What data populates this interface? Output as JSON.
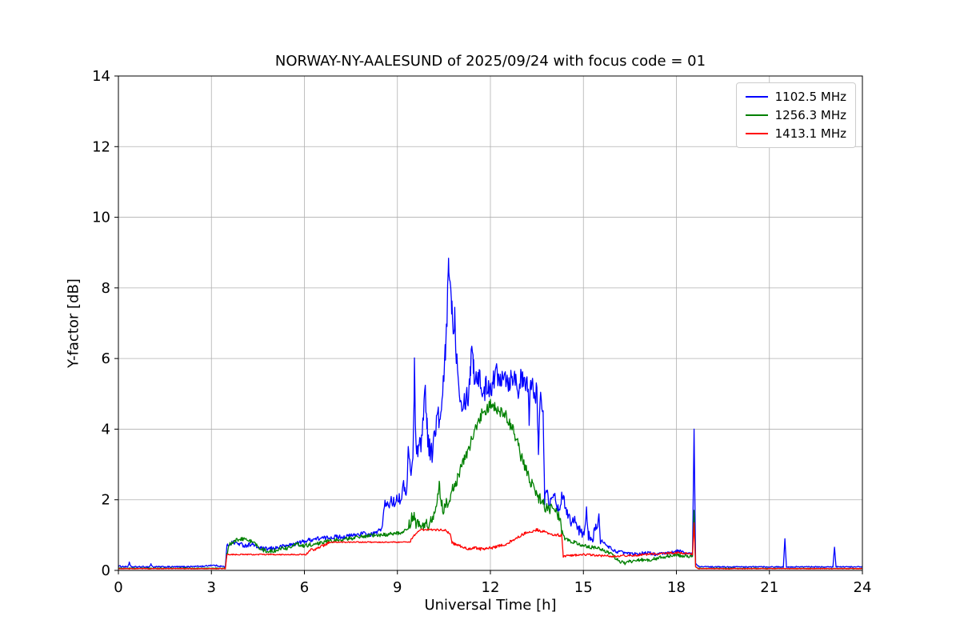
{
  "chart_data": {
    "type": "line",
    "title": "NORWAY-NY-AALESUND of 2025/09/24 with focus code = 01",
    "xlabel": "Universal Time [h]",
    "ylabel": "Y-factor [dB]",
    "xlim": [
      0,
      24
    ],
    "ylim": [
      0,
      14
    ],
    "xticks": [
      0,
      3,
      6,
      9,
      12,
      15,
      18,
      21,
      24
    ],
    "yticks": [
      0,
      2,
      4,
      6,
      8,
      10,
      12,
      14
    ],
    "grid": true,
    "legend_position": "upper right",
    "series": [
      {
        "name": "1102.5 MHz",
        "color": "#0000ff",
        "points": [
          [
            0,
            0.12
          ],
          [
            0.3,
            0.1
          ],
          [
            0.35,
            0.22
          ],
          [
            0.4,
            0.1
          ],
          [
            1.0,
            0.1
          ],
          [
            1.05,
            0.18
          ],
          [
            1.1,
            0.1
          ],
          [
            2.0,
            0.1
          ],
          [
            2.8,
            0.12
          ],
          [
            3.0,
            0.15
          ],
          [
            3.3,
            0.12
          ],
          [
            3.45,
            0.1
          ],
          [
            3.5,
            0.7
          ],
          [
            3.7,
            0.8
          ],
          [
            3.9,
            0.75
          ],
          [
            4.1,
            0.7
          ],
          [
            4.3,
            0.75
          ],
          [
            4.5,
            0.65
          ],
          [
            4.7,
            0.6
          ],
          [
            5.0,
            0.62
          ],
          [
            5.3,
            0.68
          ],
          [
            5.6,
            0.73
          ],
          [
            5.9,
            0.8
          ],
          [
            6.1,
            0.85
          ],
          [
            6.4,
            0.9
          ],
          [
            6.7,
            0.92
          ],
          [
            7.0,
            0.95
          ],
          [
            7.3,
            0.95
          ],
          [
            7.6,
            1.0
          ],
          [
            7.9,
            1.05
          ],
          [
            8.1,
            1.0
          ],
          [
            8.3,
            1.05
          ],
          [
            8.5,
            1.2
          ],
          [
            8.6,
            1.9
          ],
          [
            8.7,
            1.8
          ],
          [
            8.8,
            2.0
          ],
          [
            8.9,
            1.9
          ],
          [
            9.0,
            2.1
          ],
          [
            9.1,
            2.0
          ],
          [
            9.2,
            2.4
          ],
          [
            9.3,
            2.2
          ],
          [
            9.35,
            3.4
          ],
          [
            9.4,
            2.9
          ],
          [
            9.5,
            3.0
          ],
          [
            9.55,
            5.7
          ],
          [
            9.6,
            3.6
          ],
          [
            9.7,
            3.4
          ],
          [
            9.8,
            3.9
          ],
          [
            9.9,
            5.2
          ],
          [
            9.95,
            4.2
          ],
          [
            10.0,
            3.6
          ],
          [
            10.1,
            3.3
          ],
          [
            10.2,
            3.8
          ],
          [
            10.3,
            4.4
          ],
          [
            10.4,
            4.2
          ],
          [
            10.5,
            5.5
          ],
          [
            10.55,
            6.2
          ],
          [
            10.6,
            7.0
          ],
          [
            10.65,
            8.9
          ],
          [
            10.7,
            8.0
          ],
          [
            10.75,
            7.6
          ],
          [
            10.8,
            6.8
          ],
          [
            10.85,
            7.2
          ],
          [
            10.9,
            6.2
          ],
          [
            11.0,
            5.2
          ],
          [
            11.1,
            4.7
          ],
          [
            11.2,
            4.9
          ],
          [
            11.3,
            5.0
          ],
          [
            11.35,
            5.6
          ],
          [
            11.4,
            6.6
          ],
          [
            11.45,
            5.8
          ],
          [
            11.5,
            5.4
          ],
          [
            11.6,
            5.6
          ],
          [
            11.7,
            5.2
          ],
          [
            11.8,
            5.0
          ],
          [
            11.9,
            5.3
          ],
          [
            12.0,
            5.2
          ],
          [
            12.1,
            5.4
          ],
          [
            12.2,
            5.6
          ],
          [
            12.3,
            5.4
          ],
          [
            12.4,
            5.7
          ],
          [
            12.5,
            5.5
          ],
          [
            12.6,
            5.3
          ],
          [
            12.7,
            5.6
          ],
          [
            12.8,
            5.4
          ],
          [
            12.9,
            5.2
          ],
          [
            13.0,
            5.4
          ],
          [
            13.1,
            5.2
          ],
          [
            13.2,
            5.3
          ],
          [
            13.25,
            4.4
          ],
          [
            13.3,
            5.1
          ],
          [
            13.4,
            5.2
          ],
          [
            13.5,
            5.0
          ],
          [
            13.55,
            3.2
          ],
          [
            13.6,
            4.9
          ],
          [
            13.7,
            4.6
          ],
          [
            13.75,
            2.2
          ],
          [
            13.8,
            2.4
          ],
          [
            13.9,
            1.9
          ],
          [
            14.0,
            2.2
          ],
          [
            14.1,
            2.0
          ],
          [
            14.2,
            1.7
          ],
          [
            14.3,
            2.1
          ],
          [
            14.4,
            1.9
          ],
          [
            14.5,
            1.6
          ],
          [
            14.6,
            1.4
          ],
          [
            14.7,
            1.5
          ],
          [
            14.8,
            1.2
          ],
          [
            14.9,
            1.1
          ],
          [
            15.0,
            1.0
          ],
          [
            15.1,
            1.7
          ],
          [
            15.15,
            1.0
          ],
          [
            15.3,
            0.9
          ],
          [
            15.5,
            1.5
          ],
          [
            15.55,
            0.8
          ],
          [
            15.7,
            0.75
          ],
          [
            16.0,
            0.55
          ],
          [
            16.3,
            0.5
          ],
          [
            16.6,
            0.45
          ],
          [
            17.0,
            0.5
          ],
          [
            17.4,
            0.45
          ],
          [
            17.8,
            0.5
          ],
          [
            18.1,
            0.55
          ],
          [
            18.3,
            0.5
          ],
          [
            18.5,
            0.45
          ],
          [
            18.52,
            0.45
          ],
          [
            18.57,
            4.0
          ],
          [
            18.62,
            0.2
          ],
          [
            18.7,
            0.12
          ],
          [
            19.0,
            0.1
          ],
          [
            20.0,
            0.1
          ],
          [
            21.0,
            0.1
          ],
          [
            21.45,
            0.1
          ],
          [
            21.5,
            0.9
          ],
          [
            21.55,
            0.1
          ],
          [
            22.5,
            0.1
          ],
          [
            23.05,
            0.1
          ],
          [
            23.1,
            0.65
          ],
          [
            23.15,
            0.1
          ],
          [
            24,
            0.1
          ]
        ],
        "noise": [
          [
            0,
            3.45,
            0.02
          ],
          [
            3.5,
            8.5,
            0.06
          ],
          [
            8.5,
            9.3,
            0.15
          ],
          [
            9.3,
            13.75,
            0.35
          ],
          [
            13.75,
            15.6,
            0.15
          ],
          [
            15.6,
            18.5,
            0.05
          ],
          [
            18.7,
            24,
            0.015
          ]
        ]
      },
      {
        "name": "1256.3 MHz",
        "color": "#008000",
        "points": [
          [
            0,
            0.06
          ],
          [
            3.45,
            0.06
          ],
          [
            3.5,
            0.5
          ],
          [
            3.6,
            0.75
          ],
          [
            3.8,
            0.85
          ],
          [
            4.0,
            0.9
          ],
          [
            4.2,
            0.85
          ],
          [
            4.4,
            0.75
          ],
          [
            4.6,
            0.6
          ],
          [
            4.8,
            0.55
          ],
          [
            5.0,
            0.55
          ],
          [
            5.2,
            0.6
          ],
          [
            5.5,
            0.65
          ],
          [
            5.8,
            0.75
          ],
          [
            6.0,
            0.7
          ],
          [
            6.3,
            0.75
          ],
          [
            6.6,
            0.8
          ],
          [
            7.0,
            0.85
          ],
          [
            7.4,
            0.9
          ],
          [
            7.8,
            0.95
          ],
          [
            8.2,
            1.0
          ],
          [
            8.6,
            1.0
          ],
          [
            9.0,
            1.05
          ],
          [
            9.2,
            1.1
          ],
          [
            9.4,
            1.3
          ],
          [
            9.5,
            1.6
          ],
          [
            9.6,
            1.3
          ],
          [
            9.8,
            1.2
          ],
          [
            10.0,
            1.3
          ],
          [
            10.2,
            1.5
          ],
          [
            10.35,
            2.5
          ],
          [
            10.4,
            2.0
          ],
          [
            10.5,
            1.7
          ],
          [
            10.6,
            1.9
          ],
          [
            10.7,
            2.1
          ],
          [
            10.8,
            2.3
          ],
          [
            10.9,
            2.5
          ],
          [
            11.0,
            2.8
          ],
          [
            11.1,
            3.0
          ],
          [
            11.2,
            3.2
          ],
          [
            11.3,
            3.4
          ],
          [
            11.4,
            3.7
          ],
          [
            11.5,
            4.0
          ],
          [
            11.6,
            4.2
          ],
          [
            11.7,
            4.4
          ],
          [
            11.8,
            4.5
          ],
          [
            11.9,
            4.6
          ],
          [
            12.0,
            4.7
          ],
          [
            12.1,
            4.6
          ],
          [
            12.2,
            4.6
          ],
          [
            12.3,
            4.5
          ],
          [
            12.4,
            4.5
          ],
          [
            12.5,
            4.4
          ],
          [
            12.6,
            4.2
          ],
          [
            12.7,
            4.0
          ],
          [
            12.8,
            3.8
          ],
          [
            12.9,
            3.5
          ],
          [
            13.0,
            3.2
          ],
          [
            13.1,
            3.0
          ],
          [
            13.2,
            2.8
          ],
          [
            13.3,
            2.5
          ],
          [
            13.4,
            2.3
          ],
          [
            13.5,
            2.1
          ],
          [
            13.6,
            2.0
          ],
          [
            13.7,
            1.9
          ],
          [
            13.8,
            1.8
          ],
          [
            13.9,
            1.75
          ],
          [
            14.0,
            1.7
          ],
          [
            14.1,
            1.6
          ],
          [
            14.2,
            1.5
          ],
          [
            14.3,
            1.2
          ],
          [
            14.4,
            0.9
          ],
          [
            14.5,
            0.85
          ],
          [
            14.7,
            0.8
          ],
          [
            15.0,
            0.7
          ],
          [
            15.3,
            0.65
          ],
          [
            15.6,
            0.6
          ],
          [
            15.9,
            0.45
          ],
          [
            16.1,
            0.3
          ],
          [
            16.3,
            0.2
          ],
          [
            16.5,
            0.25
          ],
          [
            16.8,
            0.3
          ],
          [
            17.1,
            0.3
          ],
          [
            17.4,
            0.35
          ],
          [
            17.7,
            0.4
          ],
          [
            18.0,
            0.45
          ],
          [
            18.3,
            0.4
          ],
          [
            18.5,
            0.4
          ],
          [
            18.52,
            0.4
          ],
          [
            18.57,
            1.7
          ],
          [
            18.62,
            0.1
          ],
          [
            18.7,
            0.06
          ],
          [
            24,
            0.05
          ]
        ],
        "noise": [
          [
            0,
            3.45,
            0.01
          ],
          [
            3.5,
            9.3,
            0.06
          ],
          [
            9.3,
            14.3,
            0.18
          ],
          [
            14.3,
            18.5,
            0.05
          ],
          [
            18.7,
            24,
            0.01
          ]
        ]
      },
      {
        "name": "1413.1 MHz",
        "color": "#ff0000",
        "points": [
          [
            0,
            0.05
          ],
          [
            3.45,
            0.05
          ],
          [
            3.5,
            0.45
          ],
          [
            4.0,
            0.45
          ],
          [
            5.0,
            0.45
          ],
          [
            6.0,
            0.45
          ],
          [
            6.1,
            0.5
          ],
          [
            6.2,
            0.6
          ],
          [
            6.3,
            0.55
          ],
          [
            6.45,
            0.65
          ],
          [
            6.6,
            0.7
          ],
          [
            6.8,
            0.8
          ],
          [
            7.0,
            0.8
          ],
          [
            8.0,
            0.8
          ],
          [
            9.0,
            0.8
          ],
          [
            9.4,
            0.8
          ],
          [
            9.5,
            0.95
          ],
          [
            9.6,
            1.05
          ],
          [
            9.7,
            1.15
          ],
          [
            9.9,
            1.15
          ],
          [
            10.1,
            1.15
          ],
          [
            10.3,
            1.15
          ],
          [
            10.5,
            1.15
          ],
          [
            10.6,
            1.1
          ],
          [
            10.7,
            1.05
          ],
          [
            10.75,
            0.8
          ],
          [
            10.9,
            0.72
          ],
          [
            11.1,
            0.68
          ],
          [
            11.3,
            0.6
          ],
          [
            11.5,
            0.65
          ],
          [
            11.7,
            0.6
          ],
          [
            11.9,
            0.62
          ],
          [
            12.1,
            0.65
          ],
          [
            12.3,
            0.7
          ],
          [
            12.5,
            0.72
          ],
          [
            12.7,
            0.85
          ],
          [
            12.9,
            0.95
          ],
          [
            13.1,
            1.05
          ],
          [
            13.3,
            1.1
          ],
          [
            13.5,
            1.15
          ],
          [
            13.7,
            1.1
          ],
          [
            13.9,
            1.05
          ],
          [
            14.1,
            1.0
          ],
          [
            14.3,
            1.0
          ],
          [
            14.35,
            0.4
          ],
          [
            14.6,
            0.42
          ],
          [
            15.0,
            0.45
          ],
          [
            15.5,
            0.42
          ],
          [
            16.0,
            0.4
          ],
          [
            16.5,
            0.42
          ],
          [
            17.0,
            0.45
          ],
          [
            17.5,
            0.48
          ],
          [
            18.0,
            0.5
          ],
          [
            18.3,
            0.48
          ],
          [
            18.5,
            0.45
          ],
          [
            18.52,
            0.45
          ],
          [
            18.57,
            1.35
          ],
          [
            18.62,
            0.1
          ],
          [
            18.7,
            0.05
          ],
          [
            24,
            0.05
          ]
        ],
        "noise": [
          [
            0,
            3.45,
            0.01
          ],
          [
            3.5,
            6.0,
            0.015
          ],
          [
            6.0,
            6.8,
            0.04
          ],
          [
            6.8,
            9.4,
            0.015
          ],
          [
            9.4,
            10.7,
            0.03
          ],
          [
            10.7,
            14.3,
            0.04
          ],
          [
            14.35,
            18.5,
            0.03
          ],
          [
            18.7,
            24,
            0.01
          ]
        ]
      }
    ]
  }
}
